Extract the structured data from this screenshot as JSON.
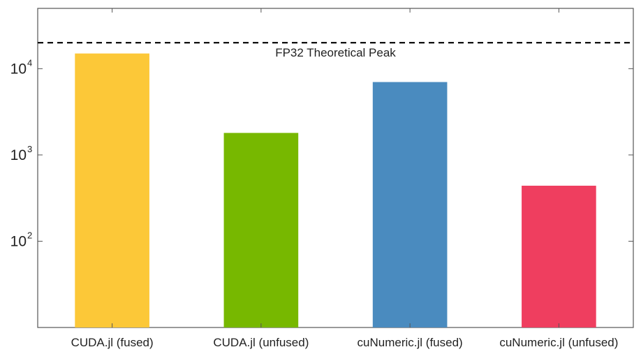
{
  "chart_data": {
    "type": "bar",
    "categories": [
      "CUDA.jl (fused)",
      "CUDA.jl (unfused)",
      "cuNumeric.jl (fused)",
      "cuNumeric.jl (unfused)"
    ],
    "values": [
      15000,
      1800,
      7000,
      440
    ],
    "colors": [
      "#FCC838",
      "#77B800",
      "#4A8BBF",
      "#EF3E5F"
    ],
    "yscale": "log",
    "ylim": [
      10,
      50000
    ],
    "yticks": [
      {
        "value": 100,
        "base": "10",
        "exp": "2"
      },
      {
        "value": 1000,
        "base": "10",
        "exp": "3"
      },
      {
        "value": 10000,
        "base": "10",
        "exp": "4"
      }
    ],
    "reference_line": {
      "value": 20000,
      "label": "FP32 Theoretical Peak",
      "style": "dashed",
      "color": "#000000"
    },
    "grid": false,
    "xlabel": "",
    "ylabel": "",
    "title": ""
  }
}
